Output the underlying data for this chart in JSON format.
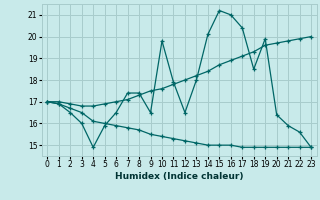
{
  "xlabel": "Humidex (Indice chaleur)",
  "background_color": "#c8eaea",
  "grid_color": "#a8cccc",
  "line_color": "#006666",
  "xlim": [
    -0.5,
    23.5
  ],
  "ylim": [
    14.5,
    21.5
  ],
  "yticks": [
    15,
    16,
    17,
    18,
    19,
    20,
    21
  ],
  "xticks": [
    0,
    1,
    2,
    3,
    4,
    5,
    6,
    7,
    8,
    9,
    10,
    11,
    12,
    13,
    14,
    15,
    16,
    17,
    18,
    19,
    20,
    21,
    22,
    23
  ],
  "series": [
    [
      17.0,
      16.9,
      16.5,
      16.0,
      14.9,
      15.9,
      16.5,
      17.4,
      17.4,
      16.5,
      19.8,
      17.9,
      16.5,
      18.0,
      20.1,
      21.2,
      21.0,
      20.4,
      18.5,
      19.9,
      16.4,
      15.9,
      15.6,
      14.9
    ],
    [
      17.0,
      17.0,
      16.9,
      16.8,
      16.8,
      16.9,
      17.0,
      17.1,
      17.3,
      17.5,
      17.6,
      17.8,
      18.0,
      18.2,
      18.4,
      18.7,
      18.9,
      19.1,
      19.3,
      19.6,
      19.7,
      19.8,
      19.9,
      20.0
    ],
    [
      17.0,
      16.9,
      16.7,
      16.5,
      16.1,
      16.0,
      15.9,
      15.8,
      15.7,
      15.5,
      15.4,
      15.3,
      15.2,
      15.1,
      15.0,
      15.0,
      15.0,
      14.9,
      14.9,
      14.9,
      14.9,
      14.9,
      14.9,
      14.9
    ]
  ]
}
